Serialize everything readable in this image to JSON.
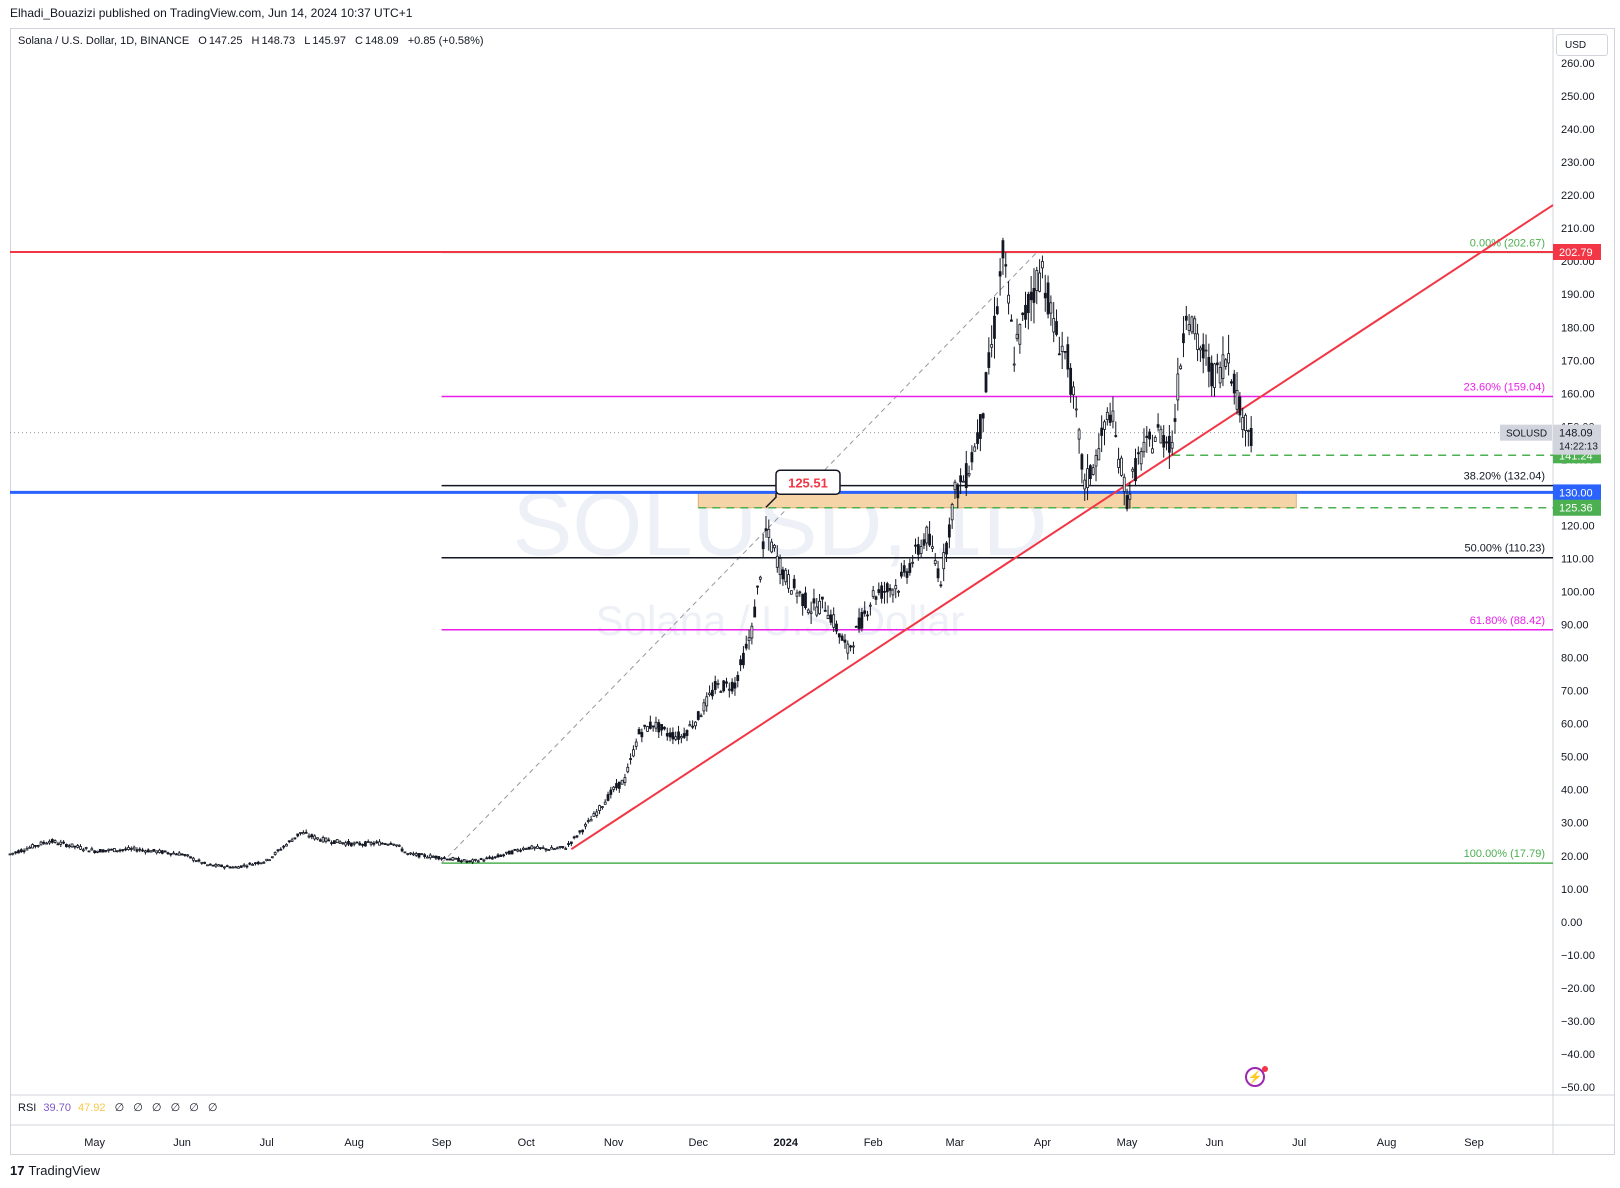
{
  "header": {
    "published": "Elhadi_Bouazizi published on TradingView.com, Jun 14, 2024 10:37 UTC+1"
  },
  "legend": {
    "symbol": "Solana / U.S. Dollar, 1D, BINANCE",
    "o_label": "O",
    "o": "147.25",
    "h_label": "H",
    "h": "148.73",
    "l_label": "L",
    "l": "145.97",
    "c_label": "C",
    "c": "148.09",
    "change": "+0.85 (+0.58%)"
  },
  "currency_button": "USD",
  "watermark": {
    "line1": "SOLUSD, 1D",
    "line2": "Solana / U.S. Dollar"
  },
  "rsi": {
    "label": "RSI",
    "v1": "39.70",
    "v2": "47.92",
    "na": [
      "∅",
      "∅",
      "∅",
      "∅",
      "∅",
      "∅"
    ]
  },
  "brand": {
    "logo": "17",
    "name": "TradingView"
  },
  "colors": {
    "up": "#131722",
    "down": "#131722",
    "red": "#f23645",
    "green": "#4caf50",
    "magenta": "#e91ee9",
    "blue": "#2962ff",
    "zone": "#f5d5a8",
    "axis_text": "#131722"
  },
  "chart_data": {
    "type": "candlestick",
    "symbol": "SOLUSD",
    "timeframe": "1D",
    "y_axis": {
      "min": -50,
      "max": 260,
      "step": 10,
      "ticks": [
        "260.00",
        "250.00",
        "240.00",
        "230.00",
        "220.00",
        "210.00",
        "200.00",
        "190.00",
        "180.00",
        "170.00",
        "160.00",
        "150.00",
        "140.00",
        "130.00",
        "120.00",
        "110.00",
        "100.00",
        "90.00",
        "80.00",
        "70.00",
        "60.00",
        "50.00",
        "40.00",
        "30.00",
        "20.00",
        "10.00",
        "0.00",
        "−10.00",
        "−20.00",
        "−30.00",
        "−40.00",
        "−50.00"
      ]
    },
    "x_axis": {
      "start": "2023-04-01",
      "end": "2024-09-29",
      "labels": [
        {
          "date": "2023-05-01",
          "text": "May"
        },
        {
          "date": "2023-06-01",
          "text": "Jun"
        },
        {
          "date": "2023-07-01",
          "text": "Jul"
        },
        {
          "date": "2023-08-01",
          "text": "Aug"
        },
        {
          "date": "2023-09-01",
          "text": "Sep"
        },
        {
          "date": "2023-10-01",
          "text": "Oct"
        },
        {
          "date": "2023-11-01",
          "text": "Nov"
        },
        {
          "date": "2023-12-01",
          "text": "Dec"
        },
        {
          "date": "2024-01-01",
          "text": "2024"
        },
        {
          "date": "2024-02-01",
          "text": "Feb"
        },
        {
          "date": "2024-03-01",
          "text": "Mar"
        },
        {
          "date": "2024-04-01",
          "text": "Apr"
        },
        {
          "date": "2024-05-01",
          "text": "May"
        },
        {
          "date": "2024-06-01",
          "text": "Jun"
        },
        {
          "date": "2024-07-01",
          "text": "Jul"
        },
        {
          "date": "2024-08-01",
          "text": "Aug"
        },
        {
          "date": "2024-09-01",
          "text": "Sep"
        }
      ]
    },
    "price_path": [
      [
        "2023-04-01",
        20.5
      ],
      [
        "2023-04-15",
        24.5
      ],
      [
        "2023-05-01",
        21.5
      ],
      [
        "2023-05-15",
        22
      ],
      [
        "2023-06-01",
        20.5
      ],
      [
        "2023-06-10",
        17.2
      ],
      [
        "2023-06-20",
        16.5
      ],
      [
        "2023-07-01",
        18.5
      ],
      [
        "2023-07-13",
        27
      ],
      [
        "2023-07-20",
        25
      ],
      [
        "2023-08-01",
        23.5
      ],
      [
        "2023-08-15",
        24
      ],
      [
        "2023-08-20",
        20.5
      ],
      [
        "2023-09-01",
        19.5
      ],
      [
        "2023-09-11",
        18.2
      ],
      [
        "2023-09-20",
        19.5
      ],
      [
        "2023-10-01",
        22.5
      ],
      [
        "2023-10-10",
        22
      ],
      [
        "2023-10-15",
        22.5
      ],
      [
        "2023-10-20",
        27
      ],
      [
        "2023-10-25",
        32
      ],
      [
        "2023-11-01",
        40
      ],
      [
        "2023-11-05",
        43
      ],
      [
        "2023-11-10",
        57
      ],
      [
        "2023-11-15",
        60
      ],
      [
        "2023-11-20",
        57
      ],
      [
        "2023-11-25",
        56
      ],
      [
        "2023-12-01",
        62
      ],
      [
        "2023-12-07",
        71
      ],
      [
        "2023-12-14",
        72
      ],
      [
        "2023-12-20",
        88
      ],
      [
        "2023-12-25",
        118
      ],
      [
        "2024-01-01",
        104
      ],
      [
        "2024-01-10",
        95
      ],
      [
        "2024-01-15",
        96
      ],
      [
        "2024-01-23",
        82
      ],
      [
        "2024-02-01",
        99
      ],
      [
        "2024-02-10",
        102
      ],
      [
        "2024-02-20",
        117
      ],
      [
        "2024-02-25",
        104
      ],
      [
        "2024-03-01",
        130
      ],
      [
        "2024-03-05",
        135
      ],
      [
        "2024-03-10",
        150
      ],
      [
        "2024-03-15",
        180
      ],
      [
        "2024-03-18",
        202
      ],
      [
        "2024-03-22",
        172
      ],
      [
        "2024-03-28",
        190
      ],
      [
        "2024-04-01",
        198
      ],
      [
        "2024-04-05",
        180
      ],
      [
        "2024-04-10",
        170
      ],
      [
        "2024-04-13",
        152
      ],
      [
        "2024-04-16",
        132
      ],
      [
        "2024-04-20",
        140
      ],
      [
        "2024-04-25",
        155
      ],
      [
        "2024-05-01",
        128
      ],
      [
        "2024-05-05",
        140
      ],
      [
        "2024-05-12",
        148
      ],
      [
        "2024-05-17",
        145
      ],
      [
        "2024-05-20",
        170
      ],
      [
        "2024-05-22",
        187
      ],
      [
        "2024-05-26",
        175
      ],
      [
        "2024-06-01",
        165
      ],
      [
        "2024-06-06",
        172
      ],
      [
        "2024-06-10",
        155
      ],
      [
        "2024-06-14",
        148
      ]
    ],
    "last_price": 148.09,
    "fib_retracement": [
      {
        "ratio": "0.00%",
        "price": 202.67,
        "label": "0.00% (202.67)",
        "color": "#4caf50"
      },
      {
        "ratio": "23.60%",
        "price": 159.04,
        "label": "23.60% (159.04)",
        "color": "#e91ee9"
      },
      {
        "ratio": "38.20%",
        "price": 132.04,
        "label": "38.20% (132.04)",
        "color": "#131722"
      },
      {
        "ratio": "50.00%",
        "price": 110.23,
        "label": "50.00% (110.23)",
        "color": "#131722"
      },
      {
        "ratio": "61.80%",
        "price": 88.42,
        "label": "61.80% (88.42)",
        "color": "#e91ee9"
      },
      {
        "ratio": "100.00%",
        "price": 17.79,
        "label": "100.00% (17.79)",
        "color": "#4caf50"
      }
    ],
    "horizontal_lines": [
      {
        "price": 202.79,
        "color": "#f23645",
        "label": "202.79"
      },
      {
        "price": 130.0,
        "color": "#2962ff",
        "label": "130.00"
      }
    ],
    "dashed_levels": [
      {
        "price": 141.24,
        "label": "141.24",
        "start": "2024-05-17"
      },
      {
        "price": 125.36,
        "label": "125.36",
        "start": "2023-12-01"
      }
    ],
    "zone": {
      "from": 125.36,
      "to": 130.0,
      "start": "2023-12-01",
      "end": "2024-06-30"
    },
    "trendline": {
      "from": [
        "2023-10-17",
        22
      ],
      "to": [
        "2024-09-29",
        217
      ]
    },
    "fib_diagonal": {
      "from": [
        "2023-09-01",
        17.79
      ],
      "to": [
        "2024-03-30",
        202.67
      ]
    },
    "callout": {
      "text": "125.51",
      "date": "2023-12-25",
      "price": 125.51
    },
    "price_tags": {
      "symbol": "SOLUSD",
      "price": "148.09",
      "countdown": "14:22:13"
    }
  }
}
